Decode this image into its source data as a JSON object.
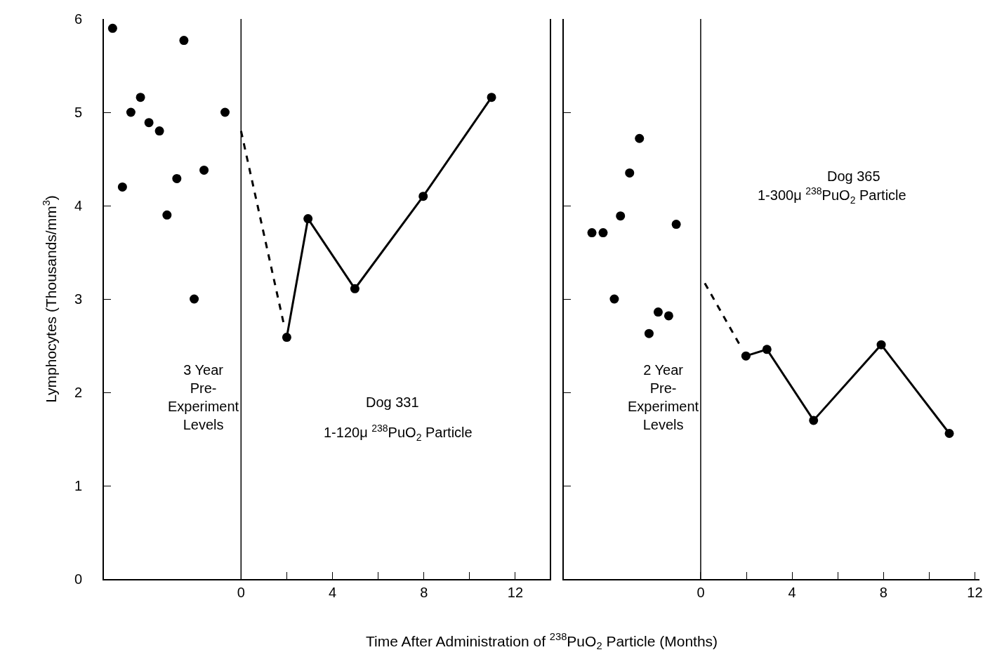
{
  "chart_data": [
    {
      "type": "scatter",
      "xlabel": "Time After Administration of $^{238}$PuO$_{2}$ Particle (Months)",
      "ylabel": "Lymphocytes (Thousands/mm$^{3}$)",
      "xlim": [
        -6,
        13.5
      ],
      "xticks": [
        0,
        {
          "value": 2,
          "label": null
        },
        4,
        {
          "value": 6,
          "label": null
        },
        8,
        {
          "value": 10,
          "label": null
        },
        12
      ],
      "ylim": [
        0,
        6
      ],
      "yticks": [
        0,
        1,
        2,
        3,
        4,
        5,
        6
      ],
      "marker": "circle",
      "ref_lines": [
        {
          "axis": "x",
          "value": 0,
          "color": "#000000"
        }
      ],
      "annotations": [
        "3 Year\nPre-\nExperiment\nLevels",
        "Dog 331",
        "1-120μ $^{238}$PuO$_{2}$ Particle"
      ],
      "series": [
        {
          "color": "#000000",
          "x": [
            -5.62,
            -5.19,
            -4.82,
            -4.4,
            -4.03,
            -3.57,
            -3.24,
            -2.81,
            -2.5,
            -2.05,
            -1.62,
            -0.7
          ],
          "values": [
            5.9,
            4.2,
            5.0,
            5.16,
            4.89,
            4.8,
            3.9,
            4.29,
            5.77,
            3.0,
            4.38,
            5.0
          ]
        },
        {
          "type": "line",
          "color": "#000000",
          "line_style": "dashed",
          "marker": "none",
          "x": [
            0,
            1.9
          ],
          "values": [
            4.8,
            2.7
          ]
        },
        {
          "type": "line",
          "color": "#000000",
          "line_style": "solid",
          "marker": "circle",
          "x": [
            2.0,
            2.93,
            4.98,
            7.97,
            10.96
          ],
          "values": [
            2.59,
            3.86,
            3.11,
            4.1,
            5.16
          ]
        }
      ]
    },
    {
      "type": "scatter",
      "xlim": [
        -6,
        12.2
      ],
      "xticks": [
        0,
        {
          "value": 2,
          "label": null
        },
        4,
        {
          "value": 6,
          "label": null
        },
        8,
        {
          "value": 10,
          "label": null
        },
        12
      ],
      "ylim": [
        0,
        6
      ],
      "yticks": [
        0,
        1,
        2,
        3,
        4,
        5,
        6
      ],
      "tick_labels": "x",
      "marker": "circle",
      "ref_lines": [
        {
          "axis": "x",
          "value": 0,
          "color": "#000000"
        }
      ],
      "annotations": [
        "2 Year\nPre-\nExperiment\nLevels",
        "Dog 365",
        "1-300μ $^{238}$PuO$_{2}$ Particle"
      ],
      "series": [
        {
          "color": "#000000",
          "x": [
            -4.76,
            -4.27,
            -3.78,
            -3.51,
            -3.11,
            -2.68,
            -2.26,
            -1.86,
            -1.4,
            -1.07
          ],
          "values": [
            3.71,
            3.71,
            3.0,
            3.89,
            4.35,
            4.72,
            2.63,
            2.86,
            2.82,
            3.8
          ]
        },
        {
          "type": "line",
          "color": "#000000",
          "line_style": "dashed",
          "marker": "none",
          "x": [
            0.18,
            1.8
          ],
          "values": [
            3.17,
            2.47
          ]
        },
        {
          "type": "line",
          "color": "#000000",
          "line_style": "solid",
          "marker": "circle",
          "x": [
            1.98,
            2.9,
            4.94,
            7.9,
            10.88
          ],
          "values": [
            2.39,
            2.46,
            1.7,
            2.51,
            1.56
          ]
        }
      ]
    }
  ]
}
